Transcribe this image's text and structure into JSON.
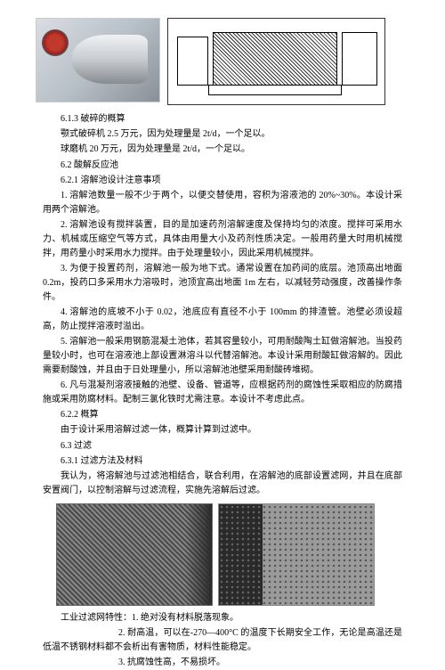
{
  "top_images": {
    "photo_alt": "球磨机照片",
    "diagram_alt": "球磨机工程图"
  },
  "s613": {
    "title": "6.1.3 破碎的概算",
    "line1": "颚式破碎机 2.5 万元，因为处理量是 2t/d，一个足以。",
    "line2": "球磨机 20 万元，因为处理量是 2t/d，一个足以。"
  },
  "s62": {
    "title": "6.2 酸解反应池",
    "s621": {
      "title": "6.2.1 溶解池设计注意事项",
      "p1": "1. 溶解池数量一般不少于两个，以便交替使用，容积为溶液池的 20%~30%。本设计采用两个溶解池。",
      "p2": "2. 溶解池设有搅拌装置，目的是加速药剂溶解速度及保持均匀的浓度。搅拌可采用水力、机械或压缩空气等方式，具体由用量大小及药剂性质决定。一般用药量大时用机械搅拌，用药量小时采用水力搅拌。由于处理量较小，因此采用机械搅拌。",
      "p3": "3. 为便于投置药剂，溶解池一般为地下式。通常设置在加药间的底层。池顶高出地面 0.2m，投药口多采用水力溶吸时，池顶宜高出地面 1m 左右，以减轻劳动强度，改善操作条件。",
      "p4": "4. 溶解池的底坡不小于 0.02，池底应有直径不小于 100mm 的排渣管。池壁必须设超高，防止搅拌溶液时溢出。",
      "p5": "5. 溶解池一般采用钢筋混凝土池体，若其容量较小，可用耐酸陶土缸做溶解池。当投药量较小时，也可在溶液池上部设置淋溶斗以代替溶解池。本设计采用耐酸缸做溶解的。因此需要耐酸蚀，并且由于日处理量小，所以溶解池池壁采用耐酸砖堆砌。",
      "p6": "6. 凡与混凝剂溶液接触的池壁、设备、管道等，应根据药剂的腐蚀性采取相应的防腐措施或采用防腐材料。配制三氯化铁时尤需注意。本设计不考虑此点。"
    },
    "s622": {
      "title": "6.2.2 概算",
      "p1": "由于设计采用溶解过滤一体，概算计算到过滤中。"
    }
  },
  "s63": {
    "title": "6.3 过滤",
    "s631": {
      "title": "6.3.1 过滤方法及材料",
      "p1": "我认为，将溶解池与过滤池相结合，联合利用，在溶解池的底部设置滤网，并且在底部安置阀门，以控制溶解与过滤流程，实施先溶解后过滤。"
    }
  },
  "bottom_images": {
    "left_alt": "工业滤网编织网",
    "right_alt": "工业滤网冲孔板"
  },
  "filter_props": {
    "intro": "工业过滤网特性：",
    "p1": "1. 绝对没有材料脱落现象。",
    "p2": "2. 耐高温，可以在-270—400°C 的温度下长期安全工作，无论是高温还是低温不锈钢材料都不会析出有害物质，材料性能稳定。",
    "p3": "3. 抗腐蚀性高，不易损坏。"
  },
  "style": {
    "body_bg": "#ffffff",
    "text_color": "#000000",
    "font_size": 10
  }
}
